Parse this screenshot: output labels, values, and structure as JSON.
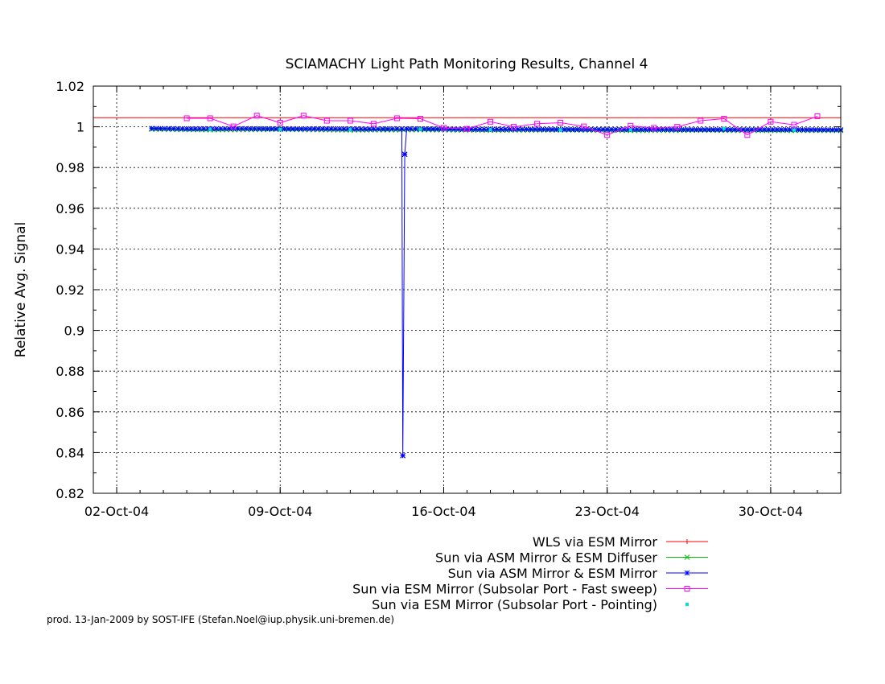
{
  "chart_data": {
    "type": "line",
    "title": "SCIAMACHY Light Path Monitoring Results, Channel 4",
    "xlabel": "",
    "ylabel": "Relative Avg. Signal",
    "x_unit": "date",
    "xlim": [
      "2004-10-01T00:00",
      "2004-11-02T00:00"
    ],
    "ylim": [
      0.82,
      1.02
    ],
    "x_ticks": [
      {
        "date": "2004-10-02",
        "label": "02-Oct-04"
      },
      {
        "date": "2004-10-09",
        "label": "09-Oct-04"
      },
      {
        "date": "2004-10-16",
        "label": "16-Oct-04"
      },
      {
        "date": "2004-10-23",
        "label": "23-Oct-04"
      },
      {
        "date": "2004-10-30",
        "label": "30-Oct-04"
      }
    ],
    "y_ticks": [
      0.82,
      0.84,
      0.86,
      0.88,
      0.9,
      0.92,
      0.94,
      0.96,
      0.98,
      1,
      1.02
    ],
    "grid": true,
    "legend_position": "below",
    "series": [
      {
        "name": "WLS via ESM Mirror",
        "color": "#ff0000",
        "marker": "plus",
        "style": "line",
        "x": [
          "2004-10-01",
          "2004-11-02"
        ],
        "y": [
          1.0045,
          1.0045
        ]
      },
      {
        "name": "Sun via ASM Mirror & ESM Diffuser",
        "color": "#00c000",
        "marker": "cross",
        "style": "line",
        "x": [
          "2004-10-03T12:00",
          "2004-10-06T00:00",
          "2004-10-09T00:00",
          "2004-10-12T00:00",
          "2004-10-15T00:00",
          "2004-10-18T00:00",
          "2004-10-21T00:00",
          "2004-10-24T00:00",
          "2004-10-27T00:00",
          "2004-10-30T00:00",
          "2004-11-02T00:00"
        ],
        "y": [
          0.9988,
          0.9985,
          0.9987,
          0.9984,
          0.9985,
          0.9983,
          0.9984,
          0.9982,
          0.9983,
          0.9982,
          0.9982
        ]
      },
      {
        "name": "Sun via ASM Mirror & ESM Mirror",
        "color": "#0000ff",
        "marker": "star",
        "style": "line",
        "x": [
          "2004-10-03T12:00",
          "2004-10-05T00:00",
          "2004-10-07T00:00",
          "2004-10-09T00:00",
          "2004-10-11T00:00",
          "2004-10-13T00:00",
          "2004-10-14T00:00",
          "2004-10-14T05:00",
          "2004-10-14T06:00",
          "2004-10-14T08:00",
          "2004-10-14T10:00",
          "2004-10-14T14:00",
          "2004-10-15T00:00",
          "2004-10-17T00:00",
          "2004-10-19T00:00",
          "2004-10-21T00:00",
          "2004-10-23T00:00",
          "2004-10-25T00:00",
          "2004-10-27T00:00",
          "2004-10-29T00:00",
          "2004-10-31T00:00",
          "2004-11-02T00:00"
        ],
        "y": [
          0.9992,
          0.999,
          0.9991,
          0.999,
          0.999,
          0.9989,
          0.999,
          0.999,
          0.8385,
          0.9865,
          0.999,
          0.999,
          0.999,
          0.9988,
          0.9988,
          0.9987,
          0.9987,
          0.9987,
          0.9986,
          0.9986,
          0.9986,
          0.9985
        ]
      },
      {
        "name": "Sun via ESM Mirror (Subsolar Port - Fast sweep)",
        "color": "#ff00ff",
        "marker": "square",
        "style": "linespoints",
        "x": [
          "2004-10-05",
          "2004-10-06",
          "2004-10-07",
          "2004-10-08",
          "2004-10-09",
          "2004-10-10",
          "2004-10-11",
          "2004-10-12",
          "2004-10-13",
          "2004-10-14",
          "2004-10-15",
          "2004-10-16",
          "2004-10-17",
          "2004-10-18",
          "2004-10-19",
          "2004-10-20",
          "2004-10-21",
          "2004-10-22",
          "2004-10-23",
          "2004-10-24",
          "2004-10-25",
          "2004-10-26",
          "2004-10-27",
          "2004-10-28",
          "2004-10-29",
          "2004-10-30",
          "2004-10-31",
          "2004-11-01"
        ],
        "y": [
          1.0042,
          1.0042,
          1.0002,
          1.0055,
          1.002,
          1.0055,
          1.003,
          1.003,
          1.0015,
          1.0042,
          1.004,
          0.9995,
          0.999,
          1.0025,
          1.0,
          1.0015,
          1.002,
          1.0002,
          0.996,
          1.0005,
          0.9995,
          1.0,
          1.003,
          1.004,
          0.996,
          1.0025,
          1.001,
          1.0052
        ]
      },
      {
        "name": "Sun via ESM Mirror (Subsolar Port - Pointing)",
        "color": "#00e0e0",
        "marker": "filled-square",
        "style": "points",
        "x": [
          "2004-10-06",
          "2004-10-09",
          "2004-10-12",
          "2004-10-15",
          "2004-10-18",
          "2004-10-21",
          "2004-10-24",
          "2004-10-28",
          "2004-10-31"
        ],
        "y": [
          0.9988,
          0.9987,
          0.9987,
          0.9988,
          0.9986,
          0.9985,
          0.9985,
          0.9992,
          0.9984
        ]
      }
    ]
  },
  "footer": "prod. 13-Jan-2009 by SOST-IFE (Stefan.Noel@iup.physik.uni-bremen.de)"
}
